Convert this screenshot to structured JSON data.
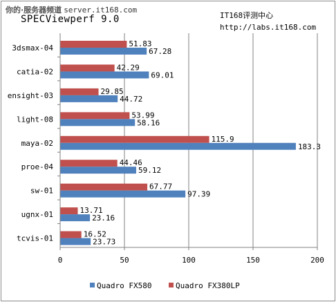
{
  "watermark": {
    "brand": "你的·服务器频道",
    "url": "server.it168.com"
  },
  "header": {
    "title": "SPECViewperf 9.0",
    "source_line1": "IT168评测中心",
    "source_line2": "http://labs.it168.com"
  },
  "colors": {
    "fx580": "#4f81bd",
    "fx380lp": "#c0504d",
    "grid": "#808080",
    "axis": "#808080"
  },
  "chart_data": {
    "type": "bar",
    "orientation": "horizontal",
    "title": "SPECViewperf 9.0",
    "categories": [
      "3dsmax-04",
      "catia-02",
      "ensight-03",
      "light-08",
      "maya-02",
      "proe-04",
      "sw-01",
      "ugnx-01",
      "tcvis-01"
    ],
    "series": [
      {
        "name": "Quadro FX580",
        "color": "#4f81bd",
        "values": [
          67.28,
          69.01,
          44.72,
          58.16,
          183.3,
          59.12,
          97.39,
          23.16,
          23.73
        ],
        "labels": [
          "67.28",
          "69.01",
          "44.72",
          "58.16",
          "183.3",
          "59.12",
          "97.39",
          "23.16",
          "23.73"
        ]
      },
      {
        "name": "Quadro FX380LP",
        "color": "#c0504d",
        "values": [
          51.83,
          42.29,
          29.85,
          53.99,
          115.9,
          44.46,
          67.77,
          13.71,
          16.52
        ],
        "labels": [
          "51.83",
          "42.29",
          "29.85",
          "53.99",
          "115.9",
          "44.46",
          "67.77",
          "13.71",
          "16.52"
        ]
      }
    ],
    "xlim": [
      0,
      200
    ],
    "xticks": [
      0,
      50,
      100,
      150,
      200
    ],
    "xtick_labels": [
      "0",
      "50",
      "100",
      "150",
      "200"
    ],
    "grid": true,
    "legend_position": "bottom"
  }
}
